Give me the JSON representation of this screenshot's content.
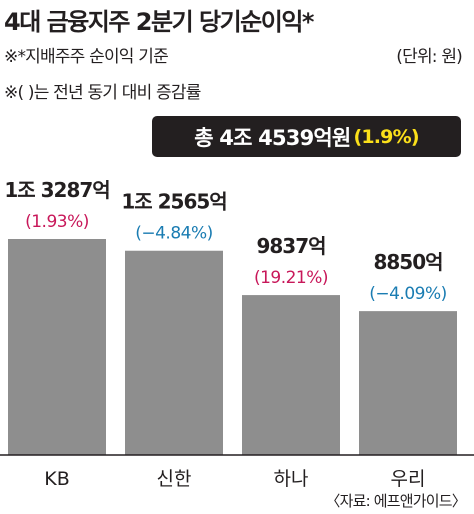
{
  "title": "4대 금융지주 2분기 당기순이익*",
  "notes": [
    "※*지배주주 순이익 기준",
    "※(   )는 전년 동기 대비 증감률"
  ],
  "unit_label": "(단위: 원)",
  "total": {
    "label": "총 4조 4539억원",
    "change": "(1.9%)"
  },
  "source": "〈자료: 에프앤가이드〉",
  "colors": {
    "bar": "#8e8e8e",
    "positive_change": "#c8185a",
    "negative_change": "#1a7cb2",
    "axis": "#231f20",
    "total_box": "#231f20",
    "total_change": "#fbe01a"
  },
  "chart_data": {
    "type": "bar",
    "categories": [
      "KB",
      "신한",
      "하나",
      "우리"
    ],
    "values": [
      13287,
      12565,
      9837,
      8850
    ],
    "value_unit": "억원",
    "value_labels": [
      "1조 3287억",
      "1조 2565억",
      "9837억",
      "8850억"
    ],
    "changes": [
      1.93,
      -4.84,
      19.21,
      -4.09
    ],
    "change_labels": [
      "(1.93%)",
      "(−4.84%)",
      "(19.21%)",
      "(−4.09%)"
    ],
    "title": "4대 금융지주 2분기 당기순이익*",
    "xlabel": "",
    "ylabel": "",
    "grid": false,
    "legend": "none"
  }
}
